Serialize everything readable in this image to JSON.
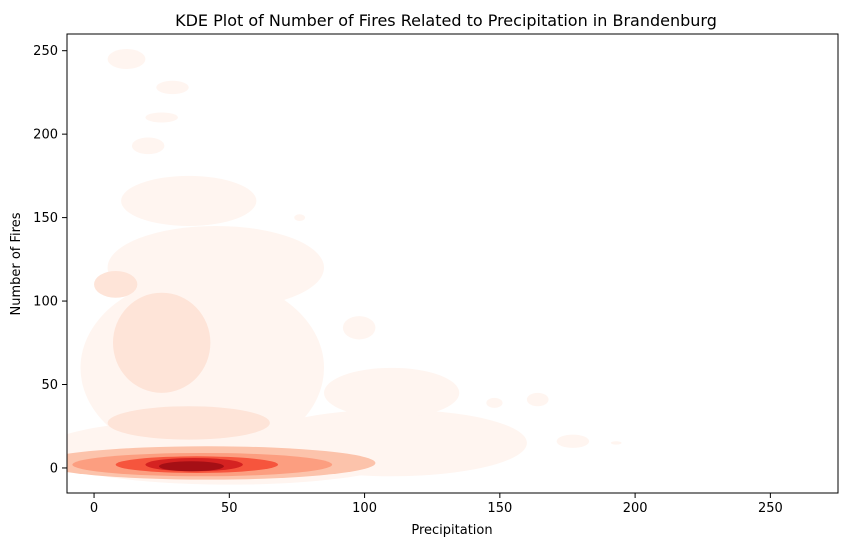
{
  "chart_data": {
    "type": "kde",
    "title": "KDE Plot of Number of Fires Related to Precipitation in Brandenburg",
    "xlabel": "Precipitation",
    "ylabel": "Number of Fires",
    "xlim": [
      -10,
      275
    ],
    "ylim": [
      -15,
      260
    ],
    "xticks": [
      0,
      50,
      100,
      150,
      200,
      250
    ],
    "yticks": [
      0,
      50,
      100,
      150,
      200,
      250
    ],
    "grid": false,
    "colormap": [
      "#fff5f0",
      "#fee4d8",
      "#fcc3ab",
      "#fc9e80",
      "#f6553d",
      "#d52221",
      "#a50f15"
    ],
    "contours": [
      {
        "level": 1,
        "regions": [
          {
            "cx": 50,
            "cy": 10,
            "rx": 70,
            "ry": 20
          },
          {
            "cx": 40,
            "cy": 60,
            "rx": 45,
            "ry": 55
          },
          {
            "cx": 45,
            "cy": 120,
            "rx": 40,
            "ry": 25
          },
          {
            "cx": 35,
            "cy": 160,
            "rx": 25,
            "ry": 15
          },
          {
            "cx": 110,
            "cy": 15,
            "rx": 50,
            "ry": 20
          },
          {
            "cx": 110,
            "cy": 45,
            "rx": 25,
            "ry": 15
          },
          {
            "cx": 12,
            "cy": 245,
            "rx": 7,
            "ry": 6
          },
          {
            "cx": 29,
            "cy": 228,
            "rx": 6,
            "ry": 4
          },
          {
            "cx": 25,
            "cy": 210,
            "rx": 6,
            "ry": 3
          },
          {
            "cx": 20,
            "cy": 193,
            "rx": 6,
            "ry": 5
          },
          {
            "cx": 76,
            "cy": 150,
            "rx": 2,
            "ry": 2
          },
          {
            "cx": 98,
            "cy": 84,
            "rx": 6,
            "ry": 7
          },
          {
            "cx": 148,
            "cy": 39,
            "rx": 3,
            "ry": 3
          },
          {
            "cx": 164,
            "cy": 41,
            "rx": 4,
            "ry": 4
          },
          {
            "cx": 177,
            "cy": 16,
            "rx": 6,
            "ry": 4
          },
          {
            "cx": 193,
            "cy": 15,
            "rx": 2,
            "ry": 1
          },
          {
            "cx": 148,
            "cy": 15,
            "rx": 6,
            "ry": 5
          }
        ]
      },
      {
        "level": 2,
        "regions": [
          {
            "cx": 35,
            "cy": 27,
            "rx": 30,
            "ry": 10
          },
          {
            "cx": 25,
            "cy": 75,
            "rx": 18,
            "ry": 30
          },
          {
            "cx": 8,
            "cy": 110,
            "rx": 8,
            "ry": 8
          }
        ]
      },
      {
        "level": 3,
        "regions": [
          {
            "cx": 42,
            "cy": 3,
            "rx": 62,
            "ry": 10
          }
        ]
      },
      {
        "level": 4,
        "regions": [
          {
            "cx": 40,
            "cy": 2,
            "rx": 48,
            "ry": 7
          }
        ]
      },
      {
        "level": 5,
        "regions": [
          {
            "cx": 38,
            "cy": 2,
            "rx": 30,
            "ry": 5
          }
        ]
      },
      {
        "level": 6,
        "regions": [
          {
            "cx": 37,
            "cy": 2,
            "rx": 18,
            "ry": 4
          }
        ]
      },
      {
        "level": 7,
        "regions": [
          {
            "cx": 36,
            "cy": 1,
            "rx": 12,
            "ry": 3
          }
        ]
      }
    ]
  }
}
